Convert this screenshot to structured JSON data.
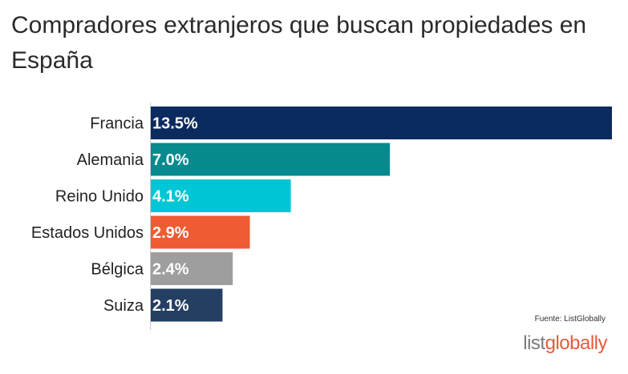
{
  "header": {
    "title": "Compradores extranjeros que buscan propiedades en España"
  },
  "chart_data": {
    "type": "bar",
    "orientation": "horizontal",
    "title": "Compradores extranjeros que buscan propiedades en España",
    "categories": [
      "Francia",
      "Alemania",
      "Reino Unido",
      "Estados Unidos",
      "Bélgica",
      "Suiza"
    ],
    "values": [
      13.5,
      7.0,
      4.1,
      2.9,
      2.4,
      2.1
    ],
    "value_labels": [
      "13.5%",
      "7.0%",
      "4.1%",
      "2.9%",
      "2.4%",
      "2.1%"
    ],
    "colors": [
      "#0b2a5e",
      "#078a8d",
      "#00c6d6",
      "#ef5b33",
      "#9e9e9e",
      "#253f62"
    ],
    "xlim": [
      0,
      13.5
    ],
    "grid": false,
    "legend": "none"
  },
  "footer": {
    "source": "Fuente: ListGlobally",
    "logo_part1": "list",
    "logo_part2": "globally"
  }
}
